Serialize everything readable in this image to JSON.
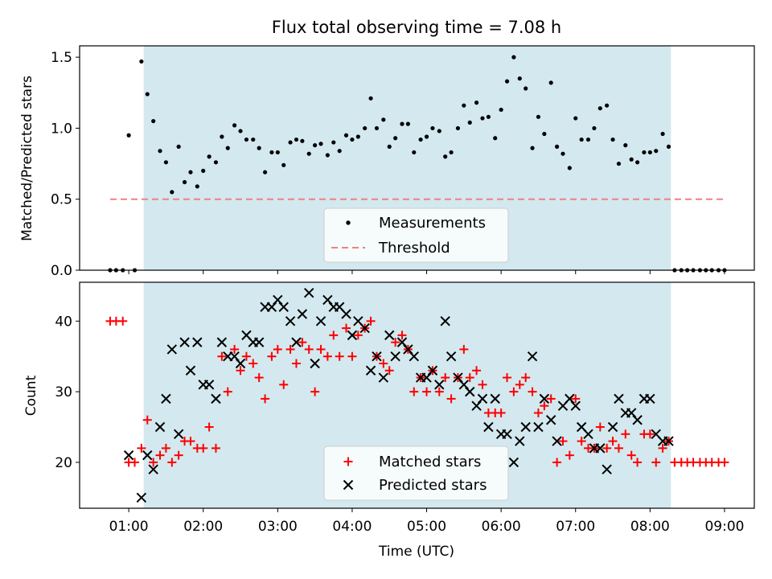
{
  "figure": {
    "title": "Flux total observing time = 7.08 h",
    "xlabel": "Time (UTC)"
  },
  "colors": {
    "shade": "#d3e9ef",
    "threshold": "#f08080",
    "matched": "#ff0000",
    "predicted": "#000000",
    "measurements": "#000000"
  },
  "chart_data": [
    {
      "type": "scatter",
      "id": "ratio",
      "ylabel": "Matched/Predicted stars",
      "xlim": [
        0.34,
        9.4
      ],
      "ylim": [
        0,
        1.58
      ],
      "x_ticks": [
        "01:00",
        "02:00",
        "03:00",
        "04:00",
        "05:00",
        "06:00",
        "07:00",
        "08:00",
        "09:00"
      ],
      "y_ticks": [
        "0.0",
        "0.5",
        "1.0",
        "1.5"
      ],
      "y_tick_values": [
        0,
        0.5,
        1.0,
        1.5
      ],
      "shaded_span": [
        1.2,
        8.28
      ],
      "threshold": {
        "name": "Threshold",
        "value": 0.5,
        "x_range": [
          0.75,
          9.0
        ]
      },
      "legend_location": "lower center",
      "series": [
        {
          "name": "Measurements",
          "x": [
            0.75,
            0.83,
            0.92,
            1.0,
            1.08,
            1.17,
            1.25,
            1.33,
            1.42,
            1.5,
            1.58,
            1.67,
            1.75,
            1.83,
            1.92,
            2.0,
            2.08,
            2.17,
            2.25,
            2.33,
            2.42,
            2.5,
            2.58,
            2.67,
            2.75,
            2.83,
            2.92,
            3.0,
            3.08,
            3.17,
            3.25,
            3.33,
            3.42,
            3.5,
            3.58,
            3.67,
            3.75,
            3.83,
            3.92,
            4.0,
            4.08,
            4.17,
            4.25,
            4.33,
            4.42,
            4.5,
            4.58,
            4.67,
            4.75,
            4.83,
            4.92,
            5.0,
            5.08,
            5.17,
            5.25,
            5.33,
            5.42,
            5.5,
            5.58,
            5.67,
            5.75,
            5.83,
            5.92,
            6.0,
            6.08,
            6.17,
            6.25,
            6.33,
            6.42,
            6.5,
            6.58,
            6.67,
            6.75,
            6.83,
            6.92,
            7.0,
            7.08,
            7.17,
            7.25,
            7.33,
            7.42,
            7.5,
            7.58,
            7.67,
            7.75,
            7.83,
            7.92,
            8.0,
            8.08,
            8.17,
            8.25,
            8.33,
            8.42,
            8.5,
            8.58,
            8.67,
            8.75,
            8.83,
            8.92,
            9.0
          ],
          "y": [
            0,
            0,
            0,
            0.95,
            0,
            1.47,
            1.24,
            1.05,
            0.84,
            0.76,
            0.55,
            0.87,
            0.62,
            0.69,
            0.59,
            0.7,
            0.8,
            0.76,
            0.94,
            0.86,
            1.02,
            0.98,
            0.92,
            0.92,
            0.86,
            0.69,
            0.83,
            0.83,
            0.74,
            0.9,
            0.92,
            0.91,
            0.82,
            0.88,
            0.89,
            0.81,
            0.9,
            0.84,
            0.95,
            0.92,
            0.94,
            1.0,
            1.21,
            1.0,
            1.06,
            0.87,
            0.93,
            1.03,
            1.03,
            0.83,
            0.92,
            0.94,
            1.0,
            0.98,
            0.8,
            0.83,
            1.0,
            1.16,
            1.04,
            1.18,
            1.07,
            1.08,
            0.93,
            1.13,
            1.33,
            1.5,
            1.35,
            1.28,
            0.86,
            1.08,
            0.96,
            1.32,
            0.87,
            0.82,
            0.72,
            1.07,
            0.92,
            0.92,
            1.0,
            1.14,
            1.16,
            0.92,
            0.75,
            0.88,
            0.78,
            0.76,
            0.83,
            0.83,
            0.84,
            0.96,
            0.87,
            0,
            0,
            0,
            0,
            0,
            0,
            0,
            0,
            0
          ]
        }
      ]
    },
    {
      "type": "scatter",
      "id": "counts",
      "ylabel": "Count",
      "xlim": [
        0.34,
        9.4
      ],
      "ylim": [
        13.5,
        45.5
      ],
      "x_ticks": [
        "01:00",
        "02:00",
        "03:00",
        "04:00",
        "05:00",
        "06:00",
        "07:00",
        "08:00",
        "09:00"
      ],
      "x_tick_values": [
        1,
        2,
        3,
        4,
        5,
        6,
        7,
        8,
        9
      ],
      "y_ticks": [
        "20",
        "30",
        "40"
      ],
      "y_tick_values": [
        20,
        30,
        40
      ],
      "shaded_span": [
        1.2,
        8.28
      ],
      "legend_location": "lower center",
      "series": [
        {
          "name": "Matched stars",
          "marker": "+",
          "x": [
            0.75,
            0.83,
            0.92,
            1.0,
            1.08,
            1.17,
            1.25,
            1.33,
            1.42,
            1.5,
            1.58,
            1.67,
            1.75,
            1.83,
            1.92,
            2.0,
            2.08,
            2.17,
            2.25,
            2.33,
            2.42,
            2.5,
            2.58,
            2.67,
            2.75,
            2.83,
            2.92,
            3.0,
            3.08,
            3.17,
            3.25,
            3.33,
            3.42,
            3.5,
            3.58,
            3.67,
            3.75,
            3.83,
            3.92,
            4.0,
            4.08,
            4.17,
            4.25,
            4.33,
            4.42,
            4.5,
            4.58,
            4.67,
            4.75,
            4.83,
            4.92,
            5.0,
            5.08,
            5.17,
            5.25,
            5.33,
            5.42,
            5.5,
            5.58,
            5.67,
            5.75,
            5.83,
            5.92,
            6.0,
            6.08,
            6.17,
            6.25,
            6.33,
            6.42,
            6.5,
            6.58,
            6.67,
            6.75,
            6.83,
            6.92,
            7.0,
            7.08,
            7.17,
            7.25,
            7.33,
            7.42,
            7.5,
            7.58,
            7.67,
            7.75,
            7.83,
            7.92,
            8.0,
            8.08,
            8.17,
            8.25,
            8.33,
            8.42,
            8.5,
            8.58,
            8.67,
            8.75,
            8.83,
            8.92,
            9.0
          ],
          "y": [
            40,
            40,
            40,
            20,
            20,
            22,
            26,
            20,
            21,
            22,
            20,
            21,
            23,
            23,
            22,
            22,
            25,
            22,
            35,
            30,
            36,
            33,
            35,
            34,
            32,
            29,
            35,
            36,
            31,
            36,
            34,
            37,
            36,
            30,
            36,
            35,
            38,
            35,
            39,
            35,
            38,
            39,
            40,
            35,
            34,
            33,
            37,
            38,
            36,
            30,
            32,
            30,
            33,
            30,
            32,
            29,
            32,
            36,
            32,
            33,
            31,
            27,
            27,
            27,
            32,
            30,
            31,
            32,
            30,
            27,
            28,
            29,
            20,
            23,
            21,
            29,
            23,
            22,
            22,
            25,
            22,
            23,
            22,
            24,
            21,
            20,
            24,
            24,
            20,
            22,
            23,
            20,
            20,
            20,
            20,
            20,
            20,
            20,
            20,
            20
          ]
        },
        {
          "name": "Predicted stars",
          "marker": "x",
          "x": [
            1.0,
            1.17,
            1.25,
            1.33,
            1.42,
            1.5,
            1.58,
            1.67,
            1.75,
            1.83,
            1.92,
            2.0,
            2.08,
            2.17,
            2.25,
            2.33,
            2.42,
            2.5,
            2.58,
            2.67,
            2.75,
            2.83,
            2.92,
            3.0,
            3.08,
            3.17,
            3.25,
            3.33,
            3.42,
            3.5,
            3.58,
            3.67,
            3.75,
            3.83,
            3.92,
            4.0,
            4.08,
            4.17,
            4.25,
            4.33,
            4.42,
            4.5,
            4.58,
            4.67,
            4.75,
            4.83,
            4.92,
            5.0,
            5.08,
            5.17,
            5.25,
            5.33,
            5.42,
            5.5,
            5.58,
            5.67,
            5.75,
            5.83,
            5.92,
            6.0,
            6.08,
            6.17,
            6.25,
            6.33,
            6.42,
            6.5,
            6.58,
            6.67,
            6.75,
            6.83,
            6.92,
            7.0,
            7.08,
            7.17,
            7.25,
            7.33,
            7.42,
            7.5,
            7.58,
            7.67,
            7.75,
            7.83,
            7.92,
            8.0,
            8.08,
            8.17,
            8.25
          ],
          "y": [
            21,
            15,
            21,
            19,
            25,
            29,
            36,
            24,
            37,
            33,
            37,
            31,
            31,
            29,
            37,
            35,
            35,
            34,
            38,
            37,
            37,
            42,
            42,
            43,
            42,
            40,
            37,
            41,
            44,
            34,
            40,
            43,
            42,
            42,
            41,
            38,
            40,
            39,
            33,
            35,
            32,
            38,
            35,
            37,
            36,
            35,
            32,
            32,
            33,
            31,
            40,
            35,
            32,
            31,
            30,
            28,
            29,
            25,
            29,
            24,
            24,
            20,
            23,
            25,
            35,
            25,
            29,
            26,
            23,
            28,
            29,
            28,
            25,
            24,
            22,
            22,
            19,
            25,
            29,
            27,
            27,
            26,
            29,
            29,
            24,
            23,
            23
          ]
        }
      ]
    }
  ]
}
